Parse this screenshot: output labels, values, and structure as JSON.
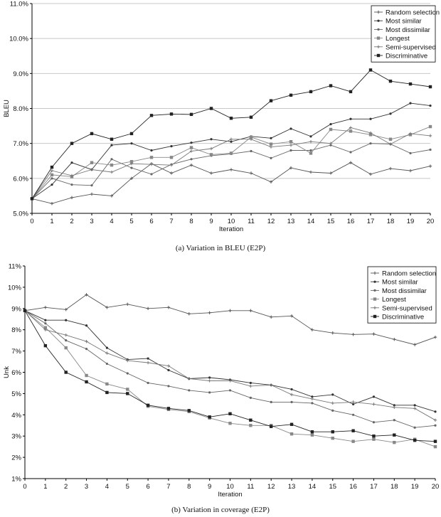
{
  "chart_data": [
    {
      "type": "line",
      "xlabel": "Iteration",
      "ylabel": "BLEU",
      "x": [
        0,
        1,
        2,
        3,
        4,
        5,
        6,
        7,
        8,
        9,
        10,
        11,
        12,
        13,
        14,
        15,
        16,
        17,
        18,
        19,
        20
      ],
      "xticks": [
        "0",
        "1",
        "2",
        "3",
        "4",
        "5",
        "6",
        "7",
        "8",
        "9",
        "10",
        "11",
        "12",
        "13",
        "14",
        "15",
        "16",
        "17",
        "18",
        "19",
        "20"
      ],
      "ylim": [
        5.0,
        11.0
      ],
      "yticks": [
        5.0,
        6.0,
        7.0,
        8.0,
        9.0,
        10.0,
        11.0
      ],
      "ytick_labels": [
        "5.0%",
        "6.0%",
        "7.0%",
        "8.0%",
        "9.0%",
        "10.0%",
        "11.0%"
      ],
      "grid": true,
      "legend_position": "top-right",
      "series": [
        {
          "name": "Random selection",
          "marker": "plus",
          "color": "#555555",
          "values": [
            5.42,
            5.28,
            5.45,
            5.55,
            5.5,
            6.0,
            6.42,
            6.15,
            6.38,
            6.15,
            6.25,
            6.15,
            5.9,
            6.3,
            6.18,
            6.15,
            6.45,
            6.12,
            6.28,
            6.22,
            6.35
          ]
        },
        {
          "name": "Most similar",
          "marker": "dot",
          "color": "#333333",
          "values": [
            5.42,
            5.82,
            6.45,
            6.25,
            6.95,
            7.0,
            6.8,
            6.92,
            7.02,
            7.12,
            7.05,
            7.2,
            7.15,
            7.42,
            7.2,
            7.55,
            7.7,
            7.7,
            7.85,
            8.15,
            8.08
          ]
        },
        {
          "name": "Most dissimilar",
          "marker": "dot",
          "color": "#666666",
          "values": [
            5.42,
            6.0,
            5.82,
            5.8,
            6.55,
            6.3,
            6.12,
            6.4,
            6.55,
            6.65,
            6.7,
            6.78,
            6.58,
            6.8,
            6.8,
            6.95,
            6.75,
            7.0,
            6.98,
            6.72,
            6.82
          ]
        },
        {
          "name": "Longest",
          "marker": "square",
          "color": "#888888",
          "values": [
            5.42,
            6.1,
            6.05,
            6.45,
            6.38,
            6.48,
            6.6,
            6.6,
            6.88,
            6.68,
            6.72,
            7.18,
            6.98,
            7.05,
            6.72,
            7.4,
            7.35,
            7.25,
            7.12,
            7.25,
            7.48
          ]
        },
        {
          "name": "Semi-supervised",
          "marker": "plus",
          "color": "#777777",
          "values": [
            5.42,
            6.22,
            6.08,
            6.25,
            6.18,
            6.42,
            6.4,
            6.38,
            6.78,
            6.85,
            7.12,
            7.12,
            6.9,
            6.95,
            7.05,
            7.0,
            7.45,
            7.3,
            6.98,
            7.28,
            7.22
          ]
        },
        {
          "name": "Discriminative",
          "marker": "square",
          "color": "#222222",
          "values": [
            5.42,
            6.32,
            7.0,
            7.28,
            7.12,
            7.28,
            7.8,
            7.84,
            7.83,
            8.0,
            7.72,
            7.75,
            8.22,
            8.38,
            8.48,
            8.65,
            8.48,
            9.1,
            8.78,
            8.7,
            8.62
          ]
        }
      ]
    },
    {
      "type": "line",
      "xlabel": "Iteration",
      "ylabel": "Unk",
      "x": [
        0,
        1,
        2,
        3,
        4,
        5,
        6,
        7,
        8,
        9,
        10,
        11,
        12,
        13,
        14,
        15,
        16,
        17,
        18,
        19,
        20
      ],
      "xticks": [
        "0",
        "1",
        "2",
        "3",
        "4",
        "5",
        "6",
        "7",
        "8",
        "9",
        "10",
        "11",
        "12",
        "13",
        "14",
        "15",
        "16",
        "17",
        "18",
        "19",
        "20"
      ],
      "ylim": [
        1,
        11
      ],
      "yticks": [
        1,
        2,
        3,
        4,
        5,
        6,
        7,
        8,
        9,
        10,
        11
      ],
      "ytick_labels": [
        "1%",
        "2%",
        "3%",
        "4%",
        "5%",
        "6%",
        "7%",
        "8%",
        "9%",
        "10%",
        "11%"
      ],
      "grid": false,
      "legend_position": "top-right",
      "series": [
        {
          "name": "Random selection",
          "marker": "plus",
          "color": "#555555",
          "values": [
            8.9,
            9.05,
            8.95,
            9.65,
            9.05,
            9.2,
            9.0,
            9.05,
            8.75,
            8.8,
            8.9,
            8.9,
            8.6,
            8.65,
            8.0,
            7.85,
            7.78,
            7.8,
            7.55,
            7.3,
            7.65
          ]
        },
        {
          "name": "Most similar",
          "marker": "dot",
          "color": "#333333",
          "values": [
            8.9,
            8.45,
            8.45,
            8.2,
            7.15,
            6.6,
            6.65,
            6.1,
            5.7,
            5.75,
            5.65,
            5.5,
            5.4,
            5.2,
            4.85,
            4.95,
            4.5,
            4.85,
            4.45,
            4.45,
            4.15
          ]
        },
        {
          "name": "Most dissimilar",
          "marker": "dot",
          "color": "#666666",
          "values": [
            8.9,
            8.3,
            7.5,
            7.1,
            6.4,
            5.95,
            5.5,
            5.35,
            5.15,
            5.05,
            5.15,
            4.8,
            4.6,
            4.6,
            4.55,
            4.2,
            4.0,
            3.65,
            3.75,
            3.4,
            3.5
          ]
        },
        {
          "name": "Longest",
          "marker": "square",
          "color": "#888888",
          "values": [
            8.9,
            8.1,
            7.15,
            5.85,
            5.45,
            5.2,
            4.4,
            4.25,
            4.15,
            3.85,
            3.6,
            3.5,
            3.5,
            3.1,
            3.05,
            2.9,
            2.75,
            2.85,
            2.7,
            2.85,
            2.5
          ]
        },
        {
          "name": "Semi-supervised",
          "marker": "plus",
          "color": "#777777",
          "values": [
            8.9,
            8.0,
            7.75,
            7.45,
            6.9,
            6.55,
            6.45,
            6.3,
            5.7,
            5.6,
            5.6,
            5.35,
            5.4,
            4.95,
            4.75,
            4.55,
            4.6,
            4.5,
            4.35,
            4.3,
            3.75
          ]
        },
        {
          "name": "Discriminative",
          "marker": "square",
          "color": "#222222",
          "values": [
            8.9,
            7.25,
            6.0,
            5.55,
            5.05,
            5.0,
            4.45,
            4.3,
            4.2,
            3.9,
            4.05,
            3.75,
            3.45,
            3.55,
            3.2,
            3.2,
            3.25,
            3.0,
            3.05,
            2.8,
            2.75
          ]
        }
      ]
    }
  ],
  "captions": {
    "a": "(a)  Variation in BLEU (E2P)",
    "b": "(b)  Variation in coverage (E2P)"
  }
}
